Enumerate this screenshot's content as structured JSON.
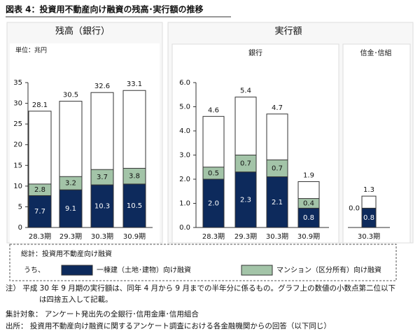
{
  "title": "図表 4：投資用不動産向け融資の残高･実行額の推移",
  "group_title": "実行額",
  "legend_prefix": "うち、",
  "notes": [
    "注） 平成 30 年 9 月期の実行額は、同年 4 月から 9 月までの半年分に係るもの。グラフ上の数値の小数点第二位以下",
    "は四捨五入して記載。",
    "集計対象： アンケート発出先の全銀行･信用金庫･信用組合",
    "出所： 投資用不動産向け融資に関するアンケート調査における各金融機関からの回答（以下同じ）"
  ],
  "chart_data": [
    {
      "type": "bar",
      "stacked": true,
      "title": "残高（銀行）",
      "unit": "単位：兆円",
      "categories": [
        "28.3期",
        "29.3期",
        "30.3期",
        "30.9期"
      ],
      "total": {
        "name": "総計：投資用不動産向け融資",
        "values": [
          28.1,
          30.5,
          32.6,
          33.1
        ]
      },
      "series": [
        {
          "name": "一棟建（土地･建物）向け融資",
          "color": "#0d2a5c",
          "values": [
            7.7,
            9.1,
            10.3,
            10.5
          ]
        },
        {
          "name": "マンション（区分所有）向け融資",
          "color": "#a3c4a8",
          "values": [
            2.8,
            3.2,
            3.7,
            3.8
          ]
        }
      ],
      "ylim": [
        0,
        35
      ],
      "yticks": [
        0,
        5,
        10,
        15,
        20,
        25,
        30,
        35
      ]
    },
    {
      "type": "bar",
      "stacked": true,
      "title": "銀行",
      "categories": [
        "28.3期",
        "29.3期",
        "30.3期",
        "30.9期"
      ],
      "total": {
        "values": [
          4.6,
          5.4,
          4.7,
          1.9
        ]
      },
      "series": [
        {
          "color": "#0d2a5c",
          "values": [
            2.0,
            2.3,
            2.1,
            0.8
          ],
          "value_labels": [
            "2.0",
            "2.3",
            "2.1",
            "0.8"
          ]
        },
        {
          "color": "#a3c4a8",
          "values": [
            0.5,
            0.7,
            0.7,
            0.4
          ]
        }
      ],
      "ylim": [
        0,
        6
      ],
      "yticks": [
        {
          "value": 0,
          "label": "0.0"
        },
        {
          "value": 1,
          "label": "1.0"
        },
        {
          "value": 2,
          "label": "2.0"
        },
        {
          "value": 3,
          "label": "3.0"
        },
        {
          "value": 4,
          "label": "4.0"
        },
        {
          "value": 5,
          "label": "5.0"
        },
        {
          "value": 6,
          "label": "6.0"
        }
      ]
    },
    {
      "type": "bar",
      "stacked": true,
      "title": "信金･信組",
      "categories": [
        "30.3期"
      ],
      "total": {
        "values": [
          1.3
        ]
      },
      "series": [
        {
          "color": "#0d2a5c",
          "values": [
            0.8
          ]
        },
        {
          "color": "#a3c4a8",
          "values": [
            0.0
          ],
          "value_labels": [
            "0.0"
          ]
        }
      ],
      "ylim": [
        0,
        6
      ]
    }
  ]
}
